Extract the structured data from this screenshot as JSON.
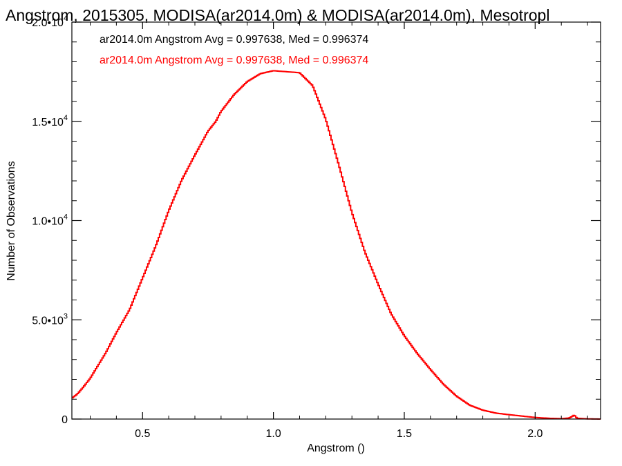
{
  "chart_data": {
    "type": "line",
    "title": "Angstrom, 2015305, MODISA(ar2014.0m) & MODISA(ar2014.0m), Mesotropl",
    "xlabel": "Angstrom ()",
    "ylabel": "Number of Observations",
    "xlim": [
      0.23,
      2.25
    ],
    "ylim": [
      0,
      20000
    ],
    "x_ticks": [
      {
        "value": 0.5,
        "label": "0.5"
      },
      {
        "value": 1.0,
        "label": "1.0"
      },
      {
        "value": 1.5,
        "label": "1.5"
      },
      {
        "value": 2.0,
        "label": "2.0"
      }
    ],
    "y_ticks": [
      {
        "value": 0,
        "label": "0"
      },
      {
        "value": 5000,
        "label": "5.0•10",
        "exp": "3"
      },
      {
        "value": 10000,
        "label": "1.0•10",
        "exp": "4"
      },
      {
        "value": 15000,
        "label": "1.5•10",
        "exp": "4"
      },
      {
        "value": 20000,
        "label": "2.0•10",
        "exp": "4"
      }
    ],
    "annotations": [
      {
        "text": "ar2014.0m Angstrom Avg = 0.997638, Med = 0.996374",
        "color": "#000000"
      },
      {
        "text": "ar2014.0m Angstrom Avg = 0.997638, Med = 0.996374",
        "color": "#ff0000"
      }
    ],
    "series": [
      {
        "color": "#ff0000",
        "step": true,
        "points": [
          [
            0.23,
            1050
          ],
          [
            0.25,
            1250
          ],
          [
            0.27,
            1550
          ],
          [
            0.3,
            2050
          ],
          [
            0.33,
            2700
          ],
          [
            0.36,
            3350
          ],
          [
            0.4,
            4350
          ],
          [
            0.45,
            5500
          ],
          [
            0.5,
            7100
          ],
          [
            0.55,
            8700
          ],
          [
            0.6,
            10500
          ],
          [
            0.65,
            12050
          ],
          [
            0.7,
            13300
          ],
          [
            0.75,
            14500
          ],
          [
            0.78,
            15000
          ],
          [
            0.8,
            15500
          ],
          [
            0.85,
            16350
          ],
          [
            0.9,
            17000
          ],
          [
            0.95,
            17400
          ],
          [
            1.0,
            17550
          ],
          [
            1.05,
            17500
          ],
          [
            1.1,
            17450
          ],
          [
            1.15,
            16800
          ],
          [
            1.2,
            15100
          ],
          [
            1.25,
            12800
          ],
          [
            1.3,
            10400
          ],
          [
            1.35,
            8400
          ],
          [
            1.4,
            6800
          ],
          [
            1.45,
            5300
          ],
          [
            1.5,
            4200
          ],
          [
            1.55,
            3300
          ],
          [
            1.6,
            2500
          ],
          [
            1.65,
            1750
          ],
          [
            1.7,
            1150
          ],
          [
            1.75,
            700
          ],
          [
            1.8,
            450
          ],
          [
            1.85,
            300
          ],
          [
            1.9,
            220
          ],
          [
            1.95,
            150
          ],
          [
            2.0,
            80
          ],
          [
            2.05,
            40
          ],
          [
            2.1,
            20
          ],
          [
            2.13,
            50
          ],
          [
            2.15,
            200
          ],
          [
            2.16,
            40
          ],
          [
            2.2,
            10
          ],
          [
            2.25,
            0
          ]
        ]
      }
    ]
  }
}
